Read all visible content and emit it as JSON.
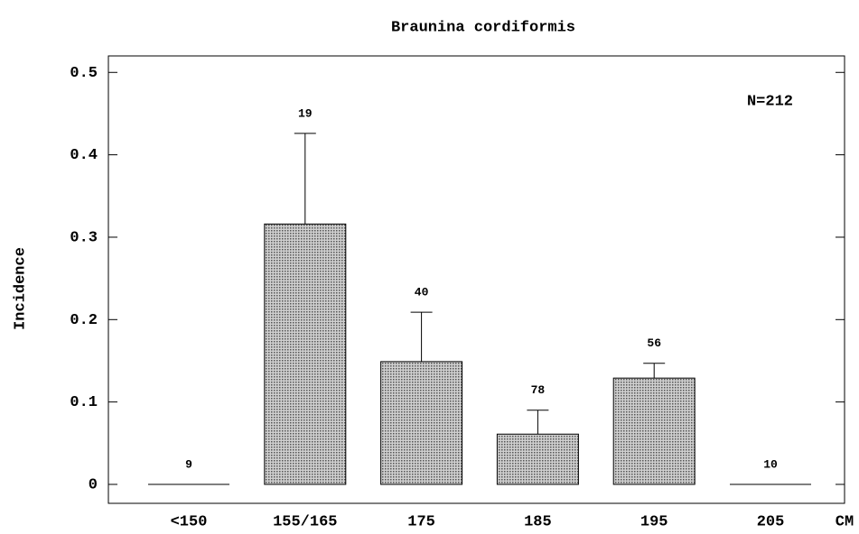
{
  "chart_data": {
    "type": "bar",
    "title": "Braunina cordiformis",
    "y_label": "Incidence",
    "x_unit": "CM",
    "annotation": "N=212",
    "categories": [
      "<150",
      "155/165",
      "175",
      "185",
      "195",
      "205"
    ],
    "values": [
      0,
      0.316,
      0.149,
      0.061,
      0.129,
      0
    ],
    "errors": [
      null,
      0.11,
      0.06,
      0.029,
      0.018,
      null
    ],
    "sample_sizes": [
      9,
      19,
      40,
      78,
      56,
      10
    ],
    "color": "#a8a8a8",
    "ylim": [
      -0.023,
      0.52
    ],
    "yticks": [
      0,
      0.1,
      0.2,
      0.3,
      0.4,
      0.5
    ]
  }
}
